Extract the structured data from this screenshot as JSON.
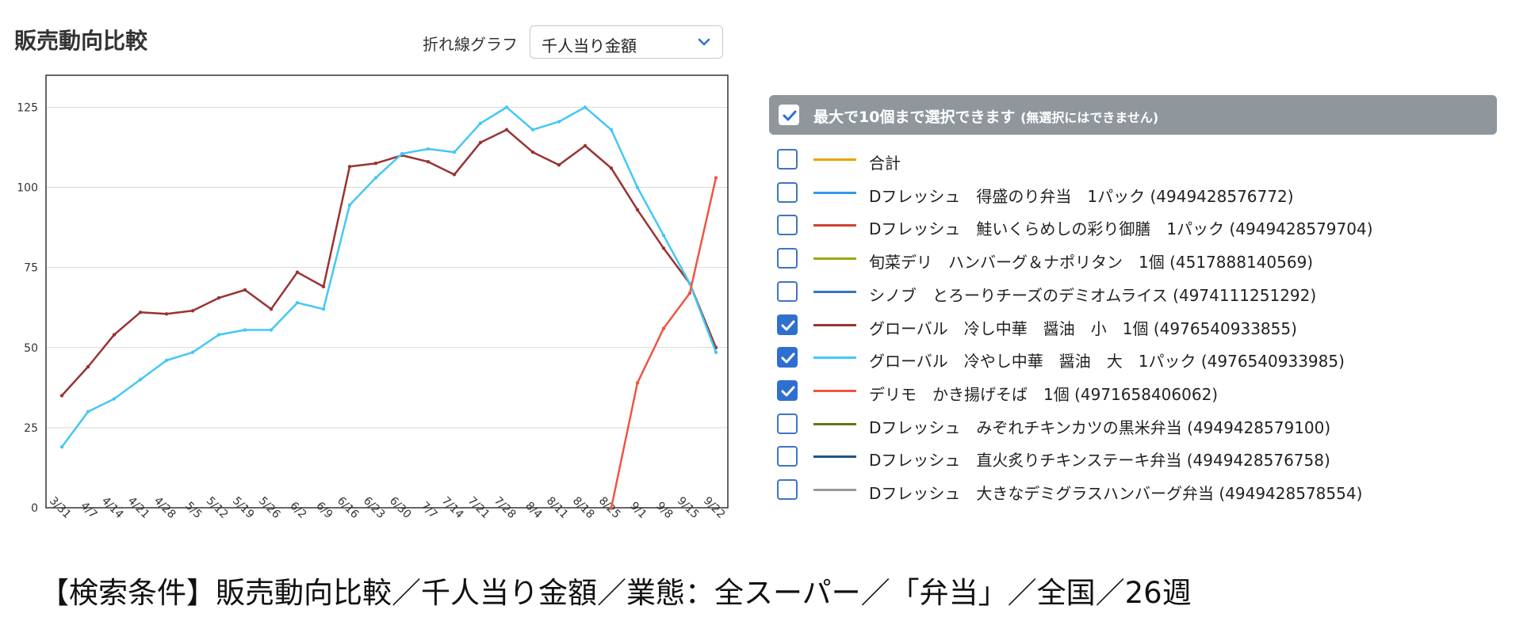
{
  "header": {
    "title": "販売動向比較",
    "chart_type_label": "折れ線グラフ",
    "metric_select": {
      "value": "千人当り金額",
      "icon": "chevron-down-icon"
    }
  },
  "legend": {
    "header_text": "最大で10個まで選択できます",
    "header_note": "(無選択にはできません)",
    "header_checked": true,
    "items": [
      {
        "label": "合計",
        "color": "#f0a000",
        "checked": false
      },
      {
        "label": "Dフレッシュ　得盛のり弁当　1パック (4949428576772)",
        "color": "#3399ee",
        "checked": false
      },
      {
        "label": "Dフレッシュ　鮭いくらめしの彩り御膳　1パック (4949428579704)",
        "color": "#cc4433",
        "checked": false
      },
      {
        "label": "旬菜デリ　ハンバーグ＆ナポリタン　1個 (4517888140569)",
        "color": "#99aa11",
        "checked": false
      },
      {
        "label": "シノブ　とろーりチーズのデミオムライス (4974111251292)",
        "color": "#3377bb",
        "checked": false
      },
      {
        "label": "グローバル　冷し中華　醤油　小　1個 (4976540933855)",
        "color": "#993333",
        "checked": true
      },
      {
        "label": "グローバル　冷やし中華　醤油　大　1パック (4976540933985)",
        "color": "#44c8f5",
        "checked": true
      },
      {
        "label": "デリモ　かき揚げそば　1個 (4971658406062)",
        "color": "#ee5544",
        "checked": true
      },
      {
        "label": "Dフレッシュ　みぞれチキンカツの黒米弁当 (4949428579100)",
        "color": "#667711",
        "checked": false
      },
      {
        "label": "Dフレッシュ　直火炙りチキンステーキ弁当 (4949428576758)",
        "color": "#225588",
        "checked": false
      },
      {
        "label": "Dフレッシュ　大きなデミグラスハンバーグ弁当 (4949428578554)",
        "color": "#999999",
        "checked": false
      }
    ]
  },
  "chart_data": {
    "type": "line",
    "categories": [
      "3/31",
      "4/7",
      "4/14",
      "4/21",
      "4/28",
      "5/5",
      "5/12",
      "5/19",
      "5/26",
      "6/2",
      "6/9",
      "6/16",
      "6/23",
      "6/30",
      "7/7",
      "7/14",
      "7/21",
      "7/28",
      "8/4",
      "8/11",
      "8/18",
      "8/25",
      "9/1",
      "9/8",
      "9/15",
      "9/22"
    ],
    "ylim": [
      0,
      135
    ],
    "yticks": [
      0,
      25,
      50,
      75,
      100,
      125
    ],
    "grid": true,
    "series": [
      {
        "name": "グローバル　冷し中華　醤油　小　1個 (4976540933855)",
        "color": "#993333",
        "values": [
          35,
          44,
          54,
          61,
          60.5,
          61.5,
          65.5,
          68,
          62,
          73.5,
          69,
          106.5,
          107.5,
          110,
          108,
          104,
          114,
          118,
          111,
          107,
          113,
          106,
          93,
          81,
          70,
          50
        ]
      },
      {
        "name": "グローバル　冷やし中華　醤油　大　1パック (4976540933985)",
        "color": "#44c8f5",
        "values": [
          19,
          30,
          34,
          40,
          46,
          48.5,
          54,
          55.5,
          55.5,
          64,
          62,
          94.5,
          103,
          110.5,
          112,
          111,
          120,
          125,
          118,
          120.5,
          125,
          118,
          100,
          85,
          70,
          48.5
        ]
      },
      {
        "name": "デリモ　かき揚げそば　1個 (4971658406062)",
        "color": "#ee5544",
        "values": [
          null,
          null,
          null,
          null,
          null,
          null,
          null,
          null,
          null,
          null,
          null,
          null,
          null,
          null,
          null,
          null,
          null,
          null,
          null,
          null,
          null,
          0,
          39,
          56,
          67,
          103
        ]
      }
    ]
  },
  "footer": {
    "search_conditions": "【検索条件】販売動向比較／千人当り金額／業態：全スーパー／「弁当」／全国／26週"
  }
}
